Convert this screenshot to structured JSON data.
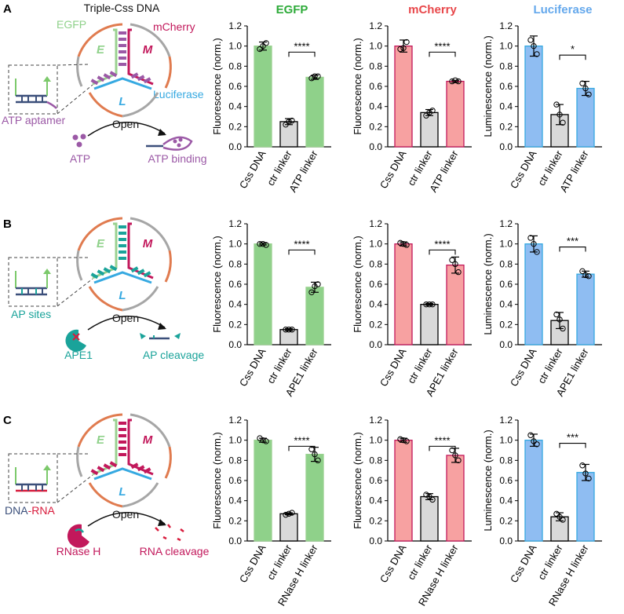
{
  "panel_labels": [
    "A",
    "B",
    "C"
  ],
  "schematic": {
    "title": "Triple-Css DNA",
    "egfp_label": "EGFP",
    "mcherry_label": "mCherry",
    "luciferase_label": "Luciferase",
    "letter_e": "E",
    "letter_m": "M",
    "letter_l": "L",
    "open_label": "Open",
    "rows": [
      {
        "trigger_label": "ATP aptamer",
        "input_label": "ATP",
        "output_label": "ATP binding",
        "color": "#9b59a6"
      },
      {
        "trigger_label": "AP sites",
        "input_label": "APE1",
        "output_label": "AP cleavage",
        "color": "#1aa39a"
      },
      {
        "trigger_label_part1": "DNA",
        "trigger_label_part2": "-RNA",
        "input_label": "RNase H",
        "output_label": "RNA cleavage",
        "color": "#c2185b"
      }
    ]
  },
  "colors": {
    "egfp_bar": "#8fd18a",
    "mcherry_bar": "#f7a1a1",
    "luciferase_bar": "#8fbdf2",
    "ctrl_bar": "#d9d9d9",
    "egfp_title": "#2eab3a",
    "mcherry_title": "#e8474a",
    "luciferase_title": "#64a8ec",
    "egfp_frame": "#99d18f",
    "mcherry_frame": "#c2185b",
    "luciferase_frame": "#36a9e1",
    "orange_arc": "#e07b4f",
    "grey_arc": "#a6a6a6",
    "dna_blue": "#3b4f7a",
    "arrow_green": "#7cc96b",
    "rna_red": "#d81b3c"
  },
  "column_titles": [
    "EGFP",
    "mCherry",
    "Luciferase"
  ],
  "chart_data": [
    {
      "type": "bar",
      "row": "A",
      "column": "EGFP",
      "ylabel": "Fluorescence (norm.)",
      "ylim": [
        0,
        1.2
      ],
      "yticks": [
        "0.0",
        "0.2",
        "0.4",
        "0.6",
        "0.8",
        "1.0",
        "1.2"
      ],
      "categories": [
        "Css DNA",
        "ctr linker",
        "ATP linker"
      ],
      "values": [
        1.0,
        0.25,
        0.69
      ],
      "errors": [
        0.04,
        0.03,
        0.02
      ],
      "points": [
        [
          0.97,
          1.03,
          1.0
        ],
        [
          0.22,
          0.26,
          0.25
        ],
        [
          0.68,
          0.7,
          0.7
        ]
      ],
      "significance": "****",
      "bar_colors": [
        "#8fd18a",
        "#d9d9d9",
        "#8fd18a"
      ]
    },
    {
      "type": "bar",
      "row": "A",
      "column": "mCherry",
      "ylabel": "Fluorescence (norm.)",
      "ylim": [
        0,
        1.2
      ],
      "yticks": [
        "0.0",
        "0.2",
        "0.4",
        "0.6",
        "0.8",
        "1.0",
        "1.2"
      ],
      "categories": [
        "Css DNA",
        "ctr linker",
        "ATP linker"
      ],
      "values": [
        1.0,
        0.34,
        0.65
      ],
      "errors": [
        0.06,
        0.03,
        0.01
      ],
      "points": [
        [
          0.97,
          1.04,
          0.98
        ],
        [
          0.31,
          0.36,
          0.34
        ],
        [
          0.65,
          0.65,
          0.66
        ]
      ],
      "significance": "****",
      "bar_colors": [
        "#f7a1a1",
        "#d9d9d9",
        "#f7a1a1"
      ]
    },
    {
      "type": "bar",
      "row": "A",
      "column": "Luciferase",
      "ylabel": "Luminescence (norm.)",
      "ylim": [
        0,
        1.2
      ],
      "yticks": [
        "0.0",
        "0.2",
        "0.4",
        "0.6",
        "0.8",
        "1.0",
        "1.2"
      ],
      "categories": [
        "Css DNA",
        "ctr linker",
        "ATP linker"
      ],
      "values": [
        1.0,
        0.32,
        0.58
      ],
      "errors": [
        0.1,
        0.1,
        0.07
      ],
      "points": [
        [
          1.06,
          0.92,
          1.0
        ],
        [
          0.42,
          0.24,
          0.32
        ],
        [
          0.63,
          0.52,
          0.58
        ]
      ],
      "significance": "*",
      "bar_colors": [
        "#8fbdf2",
        "#d9d9d9",
        "#8fbdf2"
      ]
    },
    {
      "type": "bar",
      "row": "B",
      "column": "EGFP",
      "ylabel": "Fluorescence (norm.)",
      "ylim": [
        0,
        1.2
      ],
      "yticks": [
        "0.0",
        "0.2",
        "0.4",
        "0.6",
        "0.8",
        "1.0",
        "1.2"
      ],
      "categories": [
        "Css DNA",
        "ctr linker",
        "APE1 linker"
      ],
      "values": [
        1.0,
        0.15,
        0.57
      ],
      "errors": [
        0.01,
        0.01,
        0.05
      ],
      "points": [
        [
          1.0,
          0.99,
          1.0
        ],
        [
          0.15,
          0.15,
          0.15
        ],
        [
          0.52,
          0.6,
          0.58
        ]
      ],
      "significance": "****",
      "bar_colors": [
        "#8fd18a",
        "#d9d9d9",
        "#8fd18a"
      ]
    },
    {
      "type": "bar",
      "row": "B",
      "column": "mCherry",
      "ylabel": "Fluorescence (norm.)",
      "ylim": [
        0,
        1.2
      ],
      "yticks": [
        "0.0",
        "0.2",
        "0.4",
        "0.6",
        "0.8",
        "1.0",
        "1.2"
      ],
      "categories": [
        "Css DNA",
        "ctr linker",
        "APE1 linker"
      ],
      "values": [
        1.0,
        0.4,
        0.79
      ],
      "errors": [
        0.02,
        0.01,
        0.08
      ],
      "points": [
        [
          1.01,
          0.99,
          1.0
        ],
        [
          0.4,
          0.4,
          0.4
        ],
        [
          0.84,
          0.72,
          0.8
        ]
      ],
      "significance": "****",
      "bar_colors": [
        "#f7a1a1",
        "#d9d9d9",
        "#f7a1a1"
      ]
    },
    {
      "type": "bar",
      "row": "B",
      "column": "Luciferase",
      "ylabel": "Luminescence (norm.)",
      "ylim": [
        0,
        1.2
      ],
      "yticks": [
        "0.0",
        "0.2",
        "0.4",
        "0.6",
        "0.8",
        "1.0",
        "1.2"
      ],
      "categories": [
        "Css DNA",
        "ctr linker",
        "APE1 linker"
      ],
      "values": [
        1.0,
        0.24,
        0.7
      ],
      "errors": [
        0.08,
        0.08,
        0.03
      ],
      "points": [
        [
          1.06,
          0.92,
          1.0
        ],
        [
          0.3,
          0.16,
          0.25
        ],
        [
          0.73,
          0.68,
          0.69
        ]
      ],
      "significance": "***",
      "bar_colors": [
        "#8fbdf2",
        "#d9d9d9",
        "#8fbdf2"
      ]
    },
    {
      "type": "bar",
      "row": "C",
      "column": "EGFP",
      "ylabel": "Fluorescence (norm.)",
      "ylim": [
        0,
        1.2
      ],
      "yticks": [
        "0.0",
        "0.2",
        "0.4",
        "0.6",
        "0.8",
        "1.0",
        "1.2"
      ],
      "categories": [
        "Css DNA",
        "ctr linker",
        "RNase H linker"
      ],
      "values": [
        1.0,
        0.27,
        0.86
      ],
      "errors": [
        0.02,
        0.01,
        0.07
      ],
      "points": [
        [
          1.02,
          0.99,
          1.0
        ],
        [
          0.26,
          0.28,
          0.27
        ],
        [
          0.91,
          0.8,
          0.86
        ]
      ],
      "significance": "****",
      "bar_colors": [
        "#8fd18a",
        "#d9d9d9",
        "#8fd18a"
      ]
    },
    {
      "type": "bar",
      "row": "C",
      "column": "mCherry",
      "ylabel": "Fluorescence (norm.)",
      "ylim": [
        0,
        1.2
      ],
      "yticks": [
        "0.0",
        "0.2",
        "0.4",
        "0.6",
        "0.8",
        "1.0",
        "1.2"
      ],
      "categories": [
        "Css DNA",
        "ctr linker",
        "RNase H linker"
      ],
      "values": [
        1.0,
        0.44,
        0.85
      ],
      "errors": [
        0.02,
        0.03,
        0.07
      ],
      "points": [
        [
          1.01,
          0.99,
          1.0
        ],
        [
          0.46,
          0.41,
          0.44
        ],
        [
          0.9,
          0.8,
          0.85
        ]
      ],
      "significance": "****",
      "bar_colors": [
        "#f7a1a1",
        "#d9d9d9",
        "#f7a1a1"
      ]
    },
    {
      "type": "bar",
      "row": "C",
      "column": "Luciferase",
      "ylabel": "Luminescence (norm.)",
      "ylim": [
        0,
        1.2
      ],
      "yticks": [
        "0.0",
        "0.2",
        "0.4",
        "0.6",
        "0.8",
        "1.0",
        "1.2"
      ],
      "categories": [
        "Css DNA",
        "ctr linker",
        "RNase H linker"
      ],
      "values": [
        1.0,
        0.24,
        0.68
      ],
      "errors": [
        0.06,
        0.04,
        0.08
      ],
      "points": [
        [
          1.05,
          0.96,
          0.99
        ],
        [
          0.27,
          0.21,
          0.24
        ],
        [
          0.75,
          0.62,
          0.67
        ]
      ],
      "significance": "***",
      "bar_colors": [
        "#8fbdf2",
        "#d9d9d9",
        "#8fbdf2"
      ]
    }
  ]
}
